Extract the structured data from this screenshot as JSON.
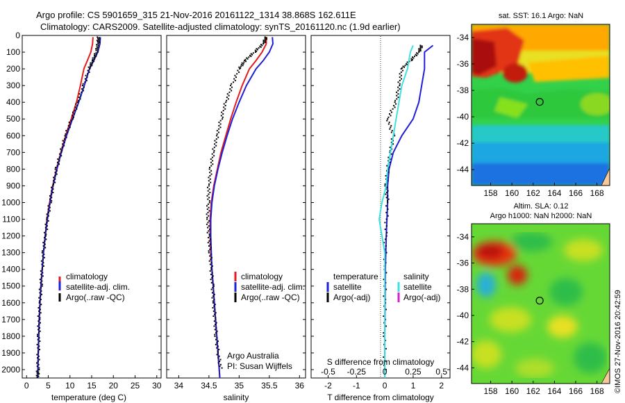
{
  "header": {
    "line1": "Argo profile: CS 5901659_315 21-Nov-2016 20161122_1314 38.868S 162.611E",
    "line2": "Climatology: CARS2009. Satellite-adjusted climatology: synTS_20161120.nc (1.9d earlier)"
  },
  "side_stamp": "©IMOS 27-Nov-2016 20:42:59",
  "colors": {
    "clim": "#e41a1c",
    "sat": "#1f1fd8",
    "argo": "#000000",
    "sat_sal": "#3ee0e0",
    "argo_sal": "#d020d0"
  },
  "chart_data": [
    {
      "type": "line",
      "id": "temperature",
      "xlabel": "temperature (deg C)",
      "xlim": [
        -1,
        31
      ],
      "ylim": [
        2050,
        0
      ],
      "xticks": [
        0,
        5,
        10,
        15,
        20,
        25,
        30
      ],
      "yticks": [
        0,
        100,
        200,
        300,
        400,
        500,
        600,
        700,
        800,
        900,
        1000,
        1100,
        1200,
        1300,
        1400,
        1500,
        1600,
        1700,
        1800,
        1900,
        2000
      ],
      "legend": [
        "climatology",
        "satellite-adj. clim.",
        "Argo(..raw -QC)"
      ],
      "series": [
        {
          "name": "climatology",
          "style": "line",
          "color": "clim",
          "points": [
            [
              15.3,
              10
            ],
            [
              15.2,
              50
            ],
            [
              14.8,
              100
            ],
            [
              14.0,
              150
            ],
            [
              13.2,
              200
            ],
            [
              12.4,
              300
            ],
            [
              11.5,
              400
            ],
            [
              10.3,
              500
            ],
            [
              9.0,
              600
            ],
            [
              7.9,
              700
            ],
            [
              6.9,
              800
            ],
            [
              6.0,
              900
            ],
            [
              5.3,
              1000
            ],
            [
              4.7,
              1100
            ],
            [
              4.3,
              1200
            ],
            [
              3.9,
              1300
            ],
            [
              3.6,
              1400
            ],
            [
              3.3,
              1500
            ],
            [
              3.1,
              1600
            ],
            [
              2.9,
              1700
            ],
            [
              2.8,
              1800
            ],
            [
              2.7,
              1900
            ],
            [
              2.6,
              2000
            ],
            [
              2.6,
              2050
            ]
          ]
        },
        {
          "name": "satellite-adj. clim.",
          "style": "line",
          "color": "sat",
          "points": [
            [
              17.0,
              10
            ],
            [
              16.9,
              50
            ],
            [
              16.4,
              100
            ],
            [
              15.5,
              150
            ],
            [
              14.5,
              200
            ],
            [
              13.3,
              300
            ],
            [
              12.0,
              400
            ],
            [
              10.6,
              500
            ],
            [
              9.2,
              600
            ],
            [
              8.0,
              700
            ],
            [
              7.0,
              800
            ],
            [
              6.1,
              900
            ],
            [
              5.4,
              1000
            ],
            [
              4.8,
              1100
            ],
            [
              4.3,
              1200
            ],
            [
              3.9,
              1300
            ],
            [
              3.6,
              1400
            ],
            [
              3.3,
              1500
            ],
            [
              3.1,
              1600
            ],
            [
              2.9,
              1700
            ],
            [
              2.8,
              1800
            ],
            [
              2.7,
              1900
            ],
            [
              2.6,
              2000
            ],
            [
              2.6,
              2050
            ]
          ]
        },
        {
          "name": "Argo(..raw -QC)",
          "style": "dots",
          "color": "argo",
          "points": [
            [
              16.6,
              10
            ],
            [
              16.5,
              50
            ],
            [
              16.1,
              100
            ],
            [
              15.3,
              150
            ],
            [
              14.4,
              200
            ],
            [
              13.2,
              300
            ],
            [
              11.8,
              400
            ],
            [
              10.4,
              500
            ],
            [
              9.0,
              600
            ],
            [
              7.9,
              700
            ],
            [
              6.9,
              800
            ],
            [
              6.1,
              900
            ],
            [
              5.4,
              1000
            ],
            [
              4.8,
              1100
            ],
            [
              4.3,
              1200
            ],
            [
              3.9,
              1300
            ],
            [
              3.6,
              1400
            ],
            [
              3.3,
              1500
            ],
            [
              3.1,
              1600
            ],
            [
              2.9,
              1700
            ],
            [
              2.8,
              1800
            ],
            [
              2.7,
              1900
            ],
            [
              2.6,
              2000
            ],
            [
              2.6,
              2050
            ]
          ]
        }
      ]
    },
    {
      "type": "line",
      "id": "salinity",
      "xlabel": "salinity",
      "xlim": [
        33.8,
        36.1
      ],
      "ylim": [
        2050,
        0
      ],
      "xticks": [
        34,
        34.5,
        35,
        35.5,
        36
      ],
      "legend": [
        "climatology",
        "satellite-adj. clim.",
        "Argo(..raw -QC)"
      ],
      "annotation": [
        "Argo Australia",
        "PI: Susan Wijffels"
      ],
      "series": [
        {
          "name": "climatology",
          "style": "line",
          "color": "clim",
          "points": [
            [
              35.45,
              10
            ],
            [
              35.45,
              50
            ],
            [
              35.38,
              100
            ],
            [
              35.28,
              150
            ],
            [
              35.17,
              200
            ],
            [
              35.05,
              300
            ],
            [
              34.95,
              400
            ],
            [
              34.86,
              500
            ],
            [
              34.78,
              600
            ],
            [
              34.7,
              700
            ],
            [
              34.64,
              800
            ],
            [
              34.58,
              900
            ],
            [
              34.54,
              1000
            ],
            [
              34.52,
              1100
            ],
            [
              34.52,
              1200
            ],
            [
              34.53,
              1300
            ],
            [
              34.55,
              1400
            ],
            [
              34.57,
              1500
            ],
            [
              34.59,
              1600
            ],
            [
              34.61,
              1700
            ],
            [
              34.63,
              1800
            ],
            [
              34.65,
              1900
            ],
            [
              34.67,
              2000
            ],
            [
              34.68,
              2050
            ]
          ]
        },
        {
          "name": "satellite-adj. clim.",
          "style": "line",
          "color": "sat",
          "points": [
            [
              35.55,
              10
            ],
            [
              35.56,
              50
            ],
            [
              35.5,
              100
            ],
            [
              35.4,
              150
            ],
            [
              35.28,
              200
            ],
            [
              35.12,
              300
            ],
            [
              35.0,
              400
            ],
            [
              34.89,
              500
            ],
            [
              34.8,
              600
            ],
            [
              34.72,
              700
            ],
            [
              34.65,
              800
            ],
            [
              34.59,
              900
            ],
            [
              34.55,
              1000
            ],
            [
              34.53,
              1100
            ],
            [
              34.53,
              1200
            ],
            [
              34.54,
              1300
            ],
            [
              34.55,
              1400
            ],
            [
              34.57,
              1500
            ],
            [
              34.59,
              1600
            ],
            [
              34.61,
              1700
            ],
            [
              34.63,
              1800
            ],
            [
              34.65,
              1900
            ],
            [
              34.67,
              2000
            ],
            [
              34.68,
              2050
            ]
          ]
        },
        {
          "name": "Argo(..raw -QC)",
          "style": "dots",
          "color": "argo",
          "points": [
            [
              35.45,
              10
            ],
            [
              35.4,
              50
            ],
            [
              35.25,
              100
            ],
            [
              35.1,
              150
            ],
            [
              35.0,
              200
            ],
            [
              34.88,
              300
            ],
            [
              34.78,
              400
            ],
            [
              34.7,
              500
            ],
            [
              34.64,
              600
            ],
            [
              34.57,
              700
            ],
            [
              34.53,
              800
            ],
            [
              34.5,
              900
            ],
            [
              34.49,
              1000
            ],
            [
              34.48,
              1100
            ],
            [
              34.5,
              1200
            ],
            [
              34.52,
              1300
            ],
            [
              34.54,
              1400
            ],
            [
              34.56,
              1500
            ],
            [
              34.58,
              1600
            ],
            [
              34.6,
              1700
            ],
            [
              34.62,
              1800
            ],
            [
              34.65,
              1900
            ],
            [
              34.7,
              2000
            ]
          ]
        }
      ]
    },
    {
      "type": "line",
      "id": "differences",
      "xlabel_bottom": "T difference from climatology",
      "xlabel_top": "S difference from climatology",
      "xlim": [
        -2.6,
        2.3
      ],
      "ylim": [
        2050,
        0
      ],
      "xticks": [
        -2,
        -1,
        0,
        1,
        2
      ],
      "top_ticks": [
        "-0.5",
        "-0.25",
        "0",
        "0.25",
        "0.5"
      ],
      "top_ticks_x": [
        -2,
        -1,
        0,
        1,
        2
      ],
      "legend_temperature": {
        "title": "temperature",
        "items": [
          "satellite",
          "Argo(-adj)"
        ]
      },
      "legend_salinity": {
        "title": "salinity",
        "items": [
          "satellite",
          "Argo(-adj)"
        ]
      },
      "series": [
        {
          "name": "temperature satellite",
          "style": "line",
          "color": "sat",
          "points": [
            [
              1.7,
              60
            ],
            [
              1.4,
              100
            ],
            [
              1.4,
              150
            ],
            [
              1.4,
              200
            ],
            [
              1.3,
              300
            ],
            [
              1.2,
              400
            ],
            [
              1.0,
              500
            ],
            [
              0.6,
              600
            ],
            [
              0.3,
              700
            ],
            [
              0.15,
              800
            ],
            [
              0.1,
              900
            ],
            [
              0.1,
              1000
            ],
            [
              0.05,
              1200
            ],
            [
              0.02,
              1400
            ],
            [
              0.01,
              1600
            ],
            [
              0,
              1800
            ],
            [
              0,
              2050
            ]
          ]
        },
        {
          "name": "temperature Argo(-adj)",
          "style": "dots",
          "color": "argo",
          "points": [
            [
              1.3,
              60
            ],
            [
              1.2,
              100
            ],
            [
              0.9,
              150
            ],
            [
              0.6,
              200
            ],
            [
              0.5,
              300
            ],
            [
              0.4,
              400
            ],
            [
              0.1,
              500
            ],
            [
              0.3,
              600
            ],
            [
              0.2,
              700
            ],
            [
              0.1,
              800
            ],
            [
              0.05,
              900
            ],
            [
              0.1,
              1000
            ],
            [
              0.02,
              1200
            ],
            [
              0.01,
              1400
            ],
            [
              0,
              1600
            ],
            [
              0,
              1800
            ],
            [
              0,
              2050
            ]
          ]
        },
        {
          "name": "salinity satellite",
          "style": "line",
          "color": "sat_sal",
          "points": [
            [
              1.0,
              60
            ],
            [
              0.9,
              100
            ],
            [
              0.8,
              200
            ],
            [
              0.6,
              300
            ],
            [
              0.5,
              400
            ],
            [
              0.4,
              500
            ],
            [
              0.3,
              600
            ],
            [
              0.2,
              700
            ],
            [
              0.1,
              800
            ],
            [
              0.05,
              900
            ],
            [
              -0.1,
              1000
            ],
            [
              -0.2,
              1100
            ],
            [
              -0.1,
              1200
            ],
            [
              0,
              1300
            ],
            [
              0,
              1500
            ],
            [
              0,
              1700
            ],
            [
              0,
              2050
            ]
          ]
        }
      ]
    }
  ],
  "maps": [
    {
      "id": "sst",
      "title_lines": [
        "sat. SST: 16.1 Argo: NaN"
      ],
      "xticks": [
        "158",
        "160",
        "162",
        "164",
        "166",
        "168"
      ],
      "yticks": [
        "-34",
        "-36",
        "-38",
        "-40",
        "-42",
        "-44"
      ],
      "xlim": [
        156.2,
        169.2
      ],
      "ylim": [
        -45.2,
        -33
      ]
    },
    {
      "id": "sla",
      "title_lines": [
        "Altim. SLA: 0.12",
        "Argo h1000: NaN h2000: NaN"
      ],
      "xticks": [
        "158",
        "160",
        "162",
        "164",
        "166",
        "168"
      ],
      "yticks": [
        "-34",
        "-36",
        "-38",
        "-40",
        "-42",
        "-44"
      ],
      "xlim": [
        156.2,
        169.2
      ],
      "ylim": [
        -45.2,
        -33
      ]
    }
  ],
  "profile_location": {
    "lon": 162.611,
    "lat": -38.868
  }
}
